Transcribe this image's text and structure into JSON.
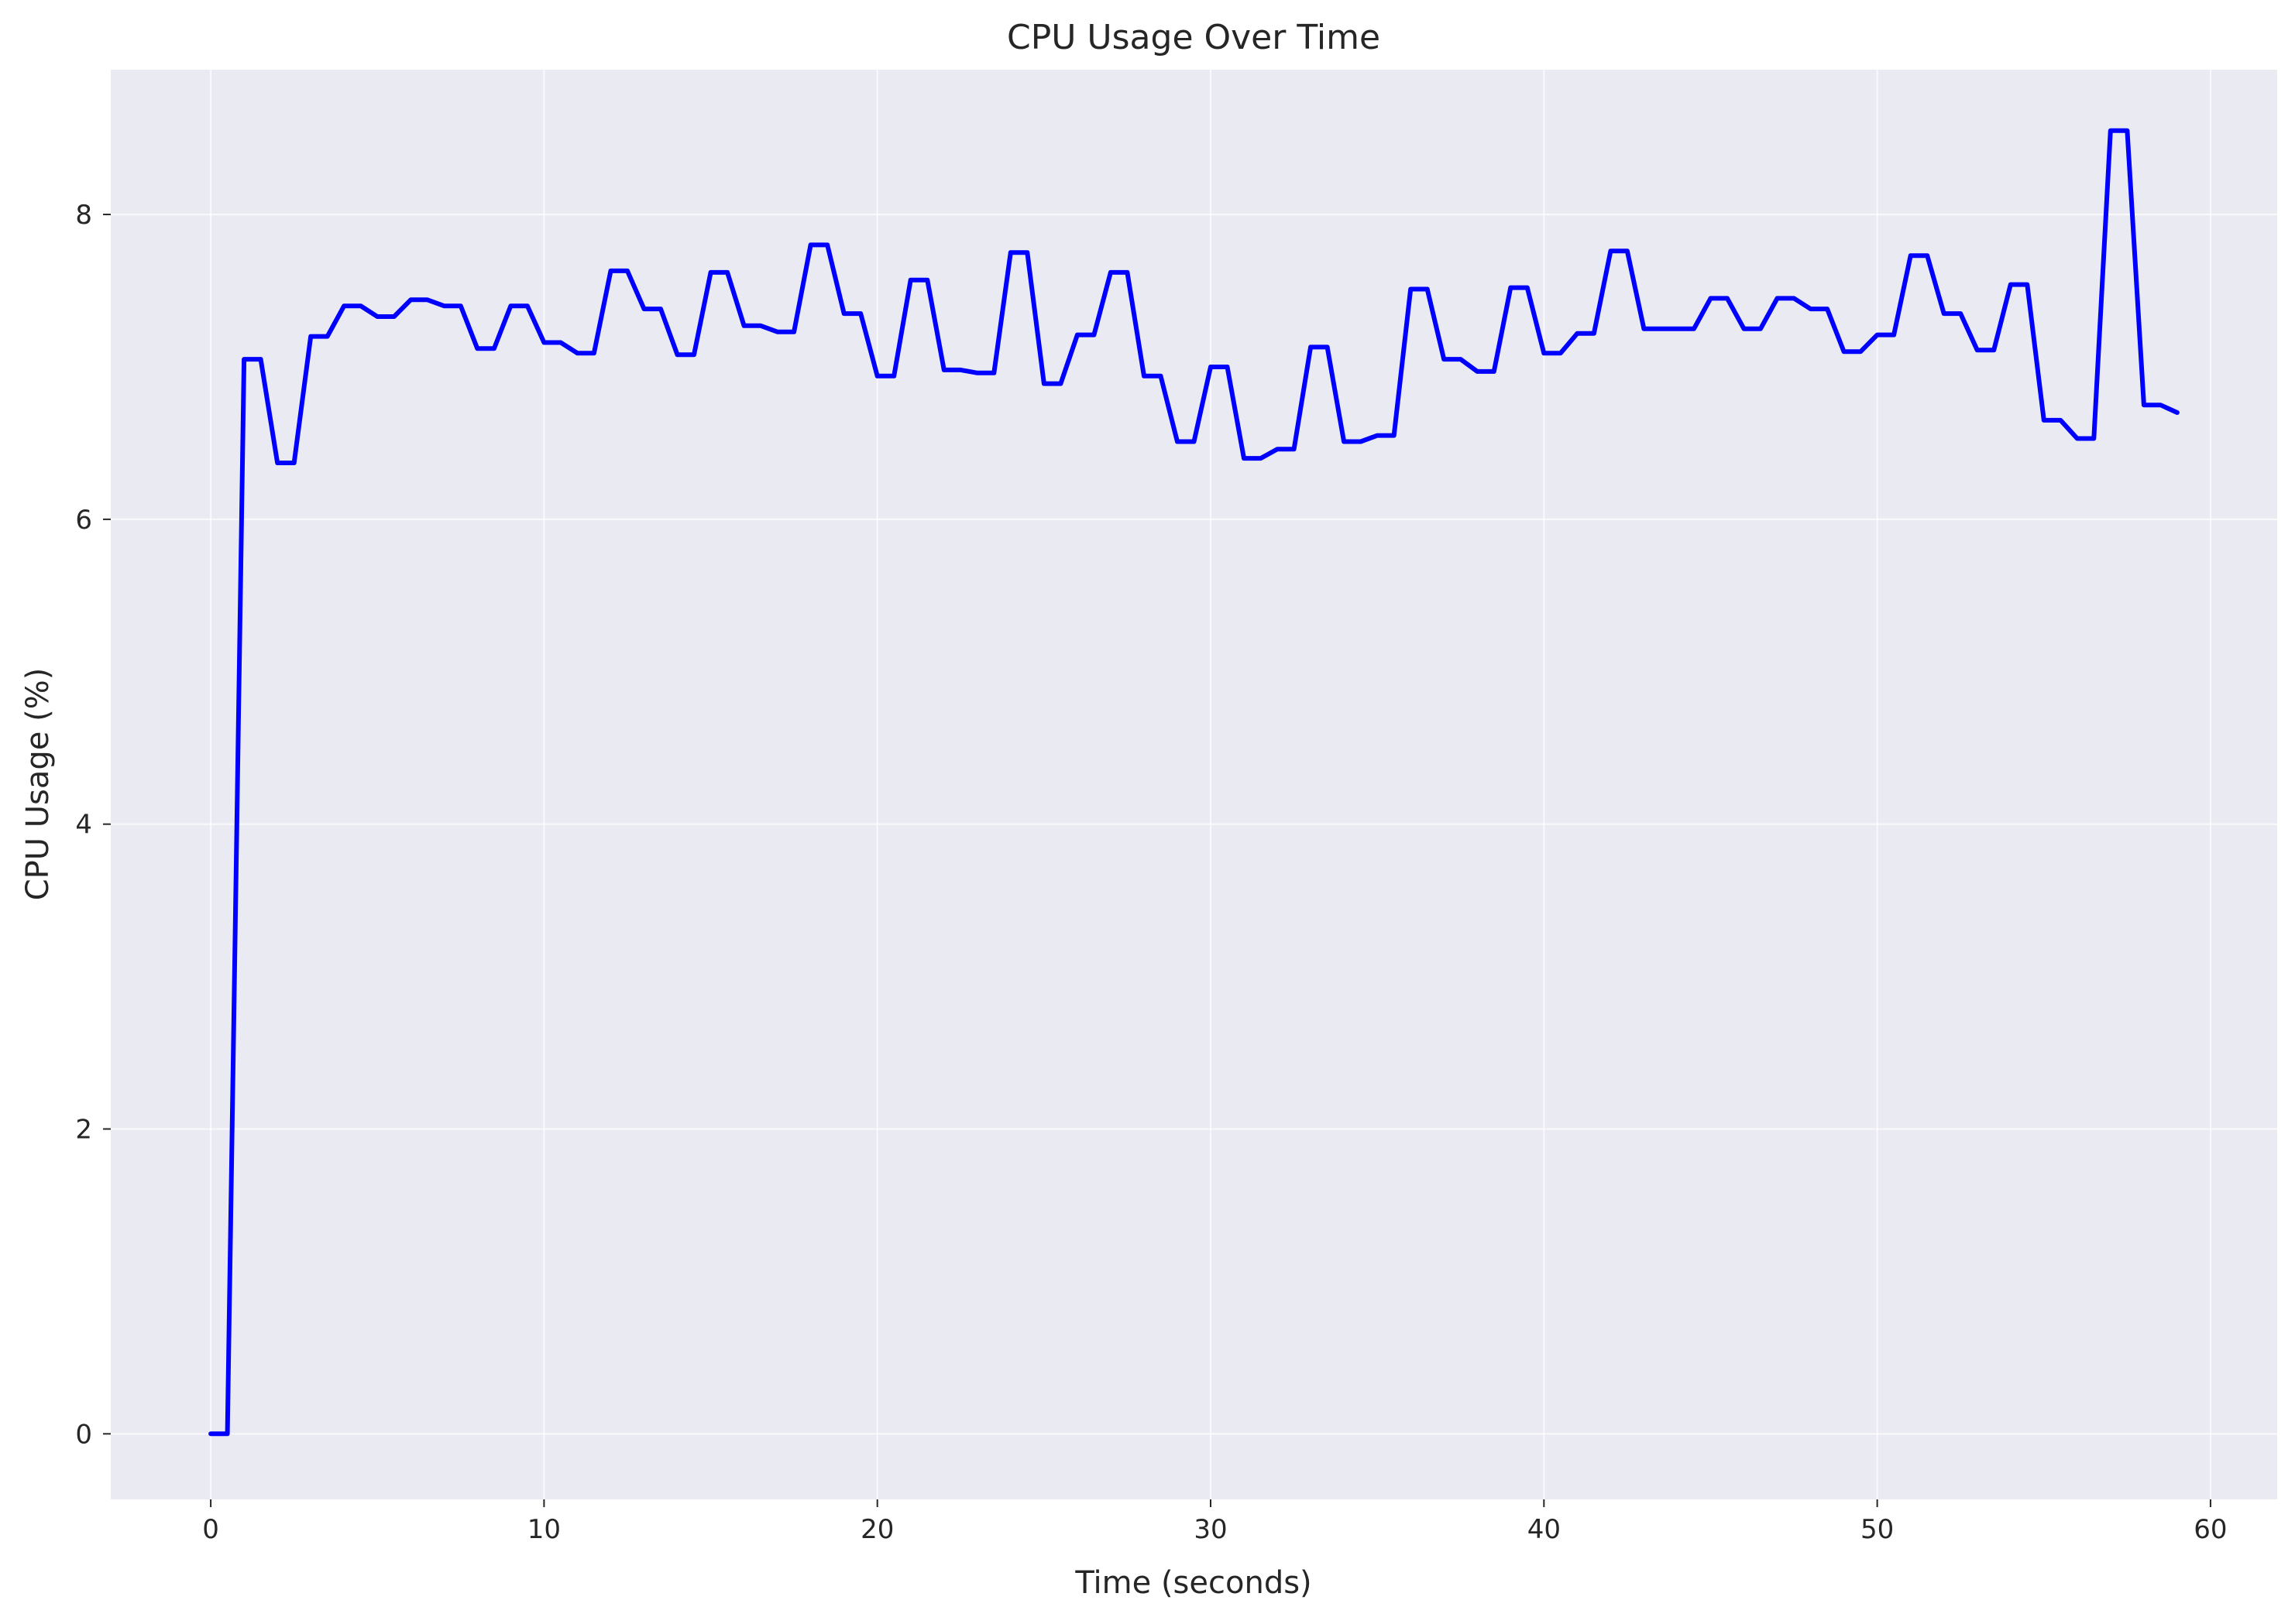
{
  "chart_data": {
    "type": "line",
    "title": "CPU Usage Over Time",
    "xlabel": "Time (seconds)",
    "ylabel": "CPU Usage (%)",
    "xlim": [
      -3,
      62
    ],
    "ylim": [
      -0.43,
      8.95
    ],
    "xticks": [
      0,
      10,
      20,
      30,
      40,
      50,
      60
    ],
    "yticks": [
      0,
      2,
      4,
      6,
      8
    ],
    "grid": true,
    "background": "#EAEAF2",
    "series": [
      {
        "color": "#0000FF",
        "x": [
          0.0,
          0.5,
          1.0,
          1.5,
          2.0,
          2.5,
          3.0,
          3.5,
          4.0,
          4.5,
          5.0,
          5.5,
          6.0,
          6.5,
          7.0,
          7.5,
          8.0,
          8.5,
          9.0,
          9.5,
          10.0,
          10.5,
          11.0,
          11.5,
          12.0,
          12.5,
          13.0,
          13.5,
          14.0,
          14.5,
          15.0,
          15.5,
          16.0,
          16.5,
          17.0,
          17.5,
          18.0,
          18.5,
          19.0,
          19.5,
          20.0,
          20.5,
          21.0,
          21.5,
          22.0,
          22.5,
          23.0,
          23.5,
          24.0,
          24.5,
          25.0,
          25.5,
          26.0,
          26.5,
          27.0,
          27.5,
          28.0,
          28.5,
          29.0,
          29.5,
          30.0,
          30.5,
          31.0,
          31.5,
          32.0,
          32.5,
          33.0,
          33.5,
          34.0,
          34.5,
          35.0,
          35.5,
          36.0,
          36.5,
          37.0,
          37.5,
          38.0,
          38.5,
          39.0,
          39.5,
          40.0,
          40.5,
          41.0,
          41.5,
          42.0,
          42.5,
          43.0,
          43.5,
          44.0,
          44.5,
          45.0,
          45.5,
          46.0,
          46.5,
          47.0,
          47.5,
          48.0,
          48.5,
          49.0,
          49.5,
          50.0,
          50.5,
          51.0,
          51.5,
          52.0,
          52.5,
          53.0,
          53.5,
          54.0,
          54.5,
          55.0,
          55.5,
          56.0,
          56.5,
          57.0,
          57.5,
          58.0,
          58.5,
          59.0
        ],
        "y": [
          0.0,
          0.0,
          7.05,
          7.05,
          6.37,
          6.37,
          7.2,
          7.2,
          7.4,
          7.4,
          7.33,
          7.33,
          7.44,
          7.44,
          7.4,
          7.4,
          7.12,
          7.12,
          7.4,
          7.4,
          7.16,
          7.16,
          7.09,
          7.09,
          7.63,
          7.63,
          7.38,
          7.38,
          7.08,
          7.08,
          7.62,
          7.62,
          7.27,
          7.27,
          7.23,
          7.23,
          7.8,
          7.8,
          7.35,
          7.35,
          6.94,
          6.94,
          7.57,
          7.57,
          6.98,
          6.98,
          6.96,
          6.96,
          7.75,
          7.75,
          6.89,
          6.89,
          7.21,
          7.21,
          7.62,
          7.62,
          6.94,
          6.94,
          6.51,
          6.51,
          7.0,
          7.0,
          6.4,
          6.4,
          6.46,
          6.46,
          7.13,
          7.13,
          6.51,
          6.51,
          6.55,
          6.55,
          7.51,
          7.51,
          7.05,
          7.05,
          6.97,
          6.97,
          7.52,
          7.52,
          7.09,
          7.09,
          7.22,
          7.22,
          7.76,
          7.76,
          7.25,
          7.25,
          7.25,
          7.25,
          7.45,
          7.45,
          7.25,
          7.25,
          7.45,
          7.45,
          7.38,
          7.38,
          7.1,
          7.1,
          7.21,
          7.21,
          7.73,
          7.73,
          7.35,
          7.35,
          7.11,
          7.11,
          7.54,
          7.54,
          6.65,
          6.65,
          6.53,
          6.53,
          8.55,
          8.55,
          6.75,
          6.75,
          6.7
        ]
      }
    ]
  }
}
